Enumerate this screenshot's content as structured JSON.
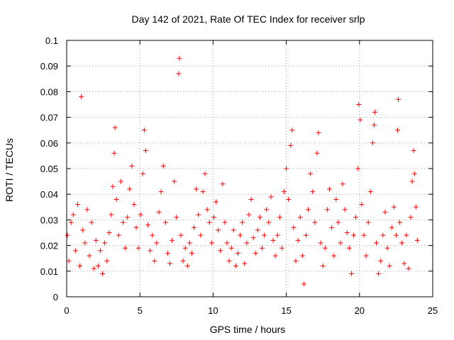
{
  "chart_data": {
    "type": "scatter",
    "title": "Day 142 of 2021, Rate Of TEC Index for receiver srlp",
    "xlabel": "GPS time / hours",
    "ylabel": "ROTI / TECUs",
    "xlim": [
      0,
      25
    ],
    "ylim": [
      0,
      0.1
    ],
    "xticks": [
      0,
      5,
      10,
      15,
      20,
      25
    ],
    "xtick_labels": [
      "0",
      "5",
      "10",
      "15",
      "20",
      "25"
    ],
    "yticks": [
      0,
      0.01,
      0.02,
      0.03,
      0.04,
      0.05,
      0.06,
      0.07,
      0.08,
      0.09,
      0.1
    ],
    "ytick_labels": [
      "0",
      "0.01",
      "0.02",
      "0.03",
      "0.04",
      "0.05",
      "0.06",
      "0.07",
      "0.08",
      "0.09",
      "0.1"
    ],
    "grid": true,
    "marker": "+",
    "series": [
      {
        "name": "ROTI",
        "color": "#ff0000",
        "points": [
          [
            0.05,
            0.024
          ],
          [
            0.15,
            0.014
          ],
          [
            0.3,
            0.029
          ],
          [
            0.45,
            0.032
          ],
          [
            0.6,
            0.018
          ],
          [
            0.75,
            0.036
          ],
          [
            0.9,
            0.012
          ],
          [
            1.0,
            0.078
          ],
          [
            1.1,
            0.026
          ],
          [
            1.25,
            0.021
          ],
          [
            1.4,
            0.034
          ],
          [
            1.55,
            0.016
          ],
          [
            1.7,
            0.029
          ],
          [
            1.85,
            0.011
          ],
          [
            2.0,
            0.022
          ],
          [
            2.15,
            0.012
          ],
          [
            2.3,
            0.018
          ],
          [
            2.45,
            0.009
          ],
          [
            2.6,
            0.021
          ],
          [
            2.75,
            0.014
          ],
          [
            2.9,
            0.025
          ],
          [
            3.05,
            0.032
          ],
          [
            3.15,
            0.043
          ],
          [
            3.25,
            0.056
          ],
          [
            3.3,
            0.066
          ],
          [
            3.4,
            0.038
          ],
          [
            3.55,
            0.024
          ],
          [
            3.7,
            0.045
          ],
          [
            3.85,
            0.029
          ],
          [
            4.0,
            0.019
          ],
          [
            4.15,
            0.031
          ],
          [
            4.3,
            0.042
          ],
          [
            4.45,
            0.051
          ],
          [
            4.6,
            0.036
          ],
          [
            4.75,
            0.027
          ],
          [
            4.9,
            0.019
          ],
          [
            5.05,
            0.032
          ],
          [
            5.2,
            0.048
          ],
          [
            5.3,
            0.065
          ],
          [
            5.4,
            0.057
          ],
          [
            5.55,
            0.028
          ],
          [
            5.7,
            0.018
          ],
          [
            5.85,
            0.024
          ],
          [
            6.0,
            0.014
          ],
          [
            6.15,
            0.021
          ],
          [
            6.3,
            0.033
          ],
          [
            6.45,
            0.041
          ],
          [
            6.6,
            0.051
          ],
          [
            6.75,
            0.029
          ],
          [
            6.9,
            0.017
          ],
          [
            7.05,
            0.013
          ],
          [
            7.2,
            0.022
          ],
          [
            7.35,
            0.045
          ],
          [
            7.5,
            0.031
          ],
          [
            7.65,
            0.087
          ],
          [
            7.7,
            0.093
          ],
          [
            7.8,
            0.024
          ],
          [
            7.95,
            0.014
          ],
          [
            8.1,
            0.019
          ],
          [
            8.25,
            0.012
          ],
          [
            8.4,
            0.021
          ],
          [
            8.55,
            0.017
          ],
          [
            8.7,
            0.027
          ],
          [
            8.85,
            0.042
          ],
          [
            9.0,
            0.032
          ],
          [
            9.15,
            0.024
          ],
          [
            9.3,
            0.041
          ],
          [
            9.45,
            0.048
          ],
          [
            9.6,
            0.034
          ],
          [
            9.75,
            0.029
          ],
          [
            9.9,
            0.021
          ],
          [
            10.05,
            0.031
          ],
          [
            10.2,
            0.037
          ],
          [
            10.35,
            0.026
          ],
          [
            10.5,
            0.018
          ],
          [
            10.65,
            0.044
          ],
          [
            10.8,
            0.029
          ],
          [
            10.95,
            0.021
          ],
          [
            11.1,
            0.014
          ],
          [
            11.25,
            0.019
          ],
          [
            11.4,
            0.026
          ],
          [
            11.55,
            0.012
          ],
          [
            11.7,
            0.017
          ],
          [
            11.85,
            0.024
          ],
          [
            12.0,
            0.029
          ],
          [
            12.15,
            0.013
          ],
          [
            12.3,
            0.021
          ],
          [
            12.45,
            0.032
          ],
          [
            12.6,
            0.038
          ],
          [
            12.75,
            0.023
          ],
          [
            12.9,
            0.017
          ],
          [
            13.05,
            0.026
          ],
          [
            13.2,
            0.031
          ],
          [
            13.35,
            0.019
          ],
          [
            13.5,
            0.024
          ],
          [
            13.65,
            0.034
          ],
          [
            13.8,
            0.029
          ],
          [
            13.95,
            0.039
          ],
          [
            14.1,
            0.022
          ],
          [
            14.25,
            0.016
          ],
          [
            14.4,
            0.024
          ],
          [
            14.55,
            0.031
          ],
          [
            14.7,
            0.019
          ],
          [
            14.85,
            0.041
          ],
          [
            15.0,
            0.05
          ],
          [
            15.15,
            0.038
          ],
          [
            15.3,
            0.059
          ],
          [
            15.4,
            0.065
          ],
          [
            15.5,
            0.027
          ],
          [
            15.65,
            0.014
          ],
          [
            15.8,
            0.022
          ],
          [
            15.95,
            0.031
          ],
          [
            16.1,
            0.016
          ],
          [
            16.2,
            0.005
          ],
          [
            16.35,
            0.024
          ],
          [
            16.5,
            0.034
          ],
          [
            16.65,
            0.048
          ],
          [
            16.8,
            0.041
          ],
          [
            16.95,
            0.029
          ],
          [
            17.1,
            0.056
          ],
          [
            17.2,
            0.064
          ],
          [
            17.35,
            0.021
          ],
          [
            17.5,
            0.012
          ],
          [
            17.65,
            0.019
          ],
          [
            17.8,
            0.034
          ],
          [
            17.95,
            0.042
          ],
          [
            18.1,
            0.027
          ],
          [
            18.25,
            0.016
          ],
          [
            18.4,
            0.038
          ],
          [
            18.55,
            0.029
          ],
          [
            18.7,
            0.021
          ],
          [
            18.85,
            0.044
          ],
          [
            19.0,
            0.034
          ],
          [
            19.15,
            0.025
          ],
          [
            19.3,
            0.019
          ],
          [
            19.45,
            0.009
          ],
          [
            19.6,
            0.024
          ],
          [
            19.75,
            0.031
          ],
          [
            19.9,
            0.05
          ],
          [
            19.95,
            0.075
          ],
          [
            20.05,
            0.069
          ],
          [
            20.15,
            0.036
          ],
          [
            20.3,
            0.024
          ],
          [
            20.45,
            0.016
          ],
          [
            20.6,
            0.029
          ],
          [
            20.75,
            0.041
          ],
          [
            20.9,
            0.06
          ],
          [
            21.0,
            0.067
          ],
          [
            21.05,
            0.072
          ],
          [
            21.15,
            0.021
          ],
          [
            21.3,
            0.009
          ],
          [
            21.45,
            0.014
          ],
          [
            21.6,
            0.024
          ],
          [
            21.75,
            0.033
          ],
          [
            21.9,
            0.019
          ],
          [
            22.05,
            0.012
          ],
          [
            22.2,
            0.027
          ],
          [
            22.35,
            0.035
          ],
          [
            22.5,
            0.024
          ],
          [
            22.6,
            0.065
          ],
          [
            22.65,
            0.077
          ],
          [
            22.75,
            0.029
          ],
          [
            22.9,
            0.021
          ],
          [
            23.05,
            0.013
          ],
          [
            23.2,
            0.024
          ],
          [
            23.35,
            0.011
          ],
          [
            23.5,
            0.031
          ],
          [
            23.6,
            0.045
          ],
          [
            23.7,
            0.057
          ],
          [
            23.75,
            0.048
          ],
          [
            23.85,
            0.035
          ],
          [
            23.95,
            0.022
          ]
        ]
      }
    ]
  }
}
